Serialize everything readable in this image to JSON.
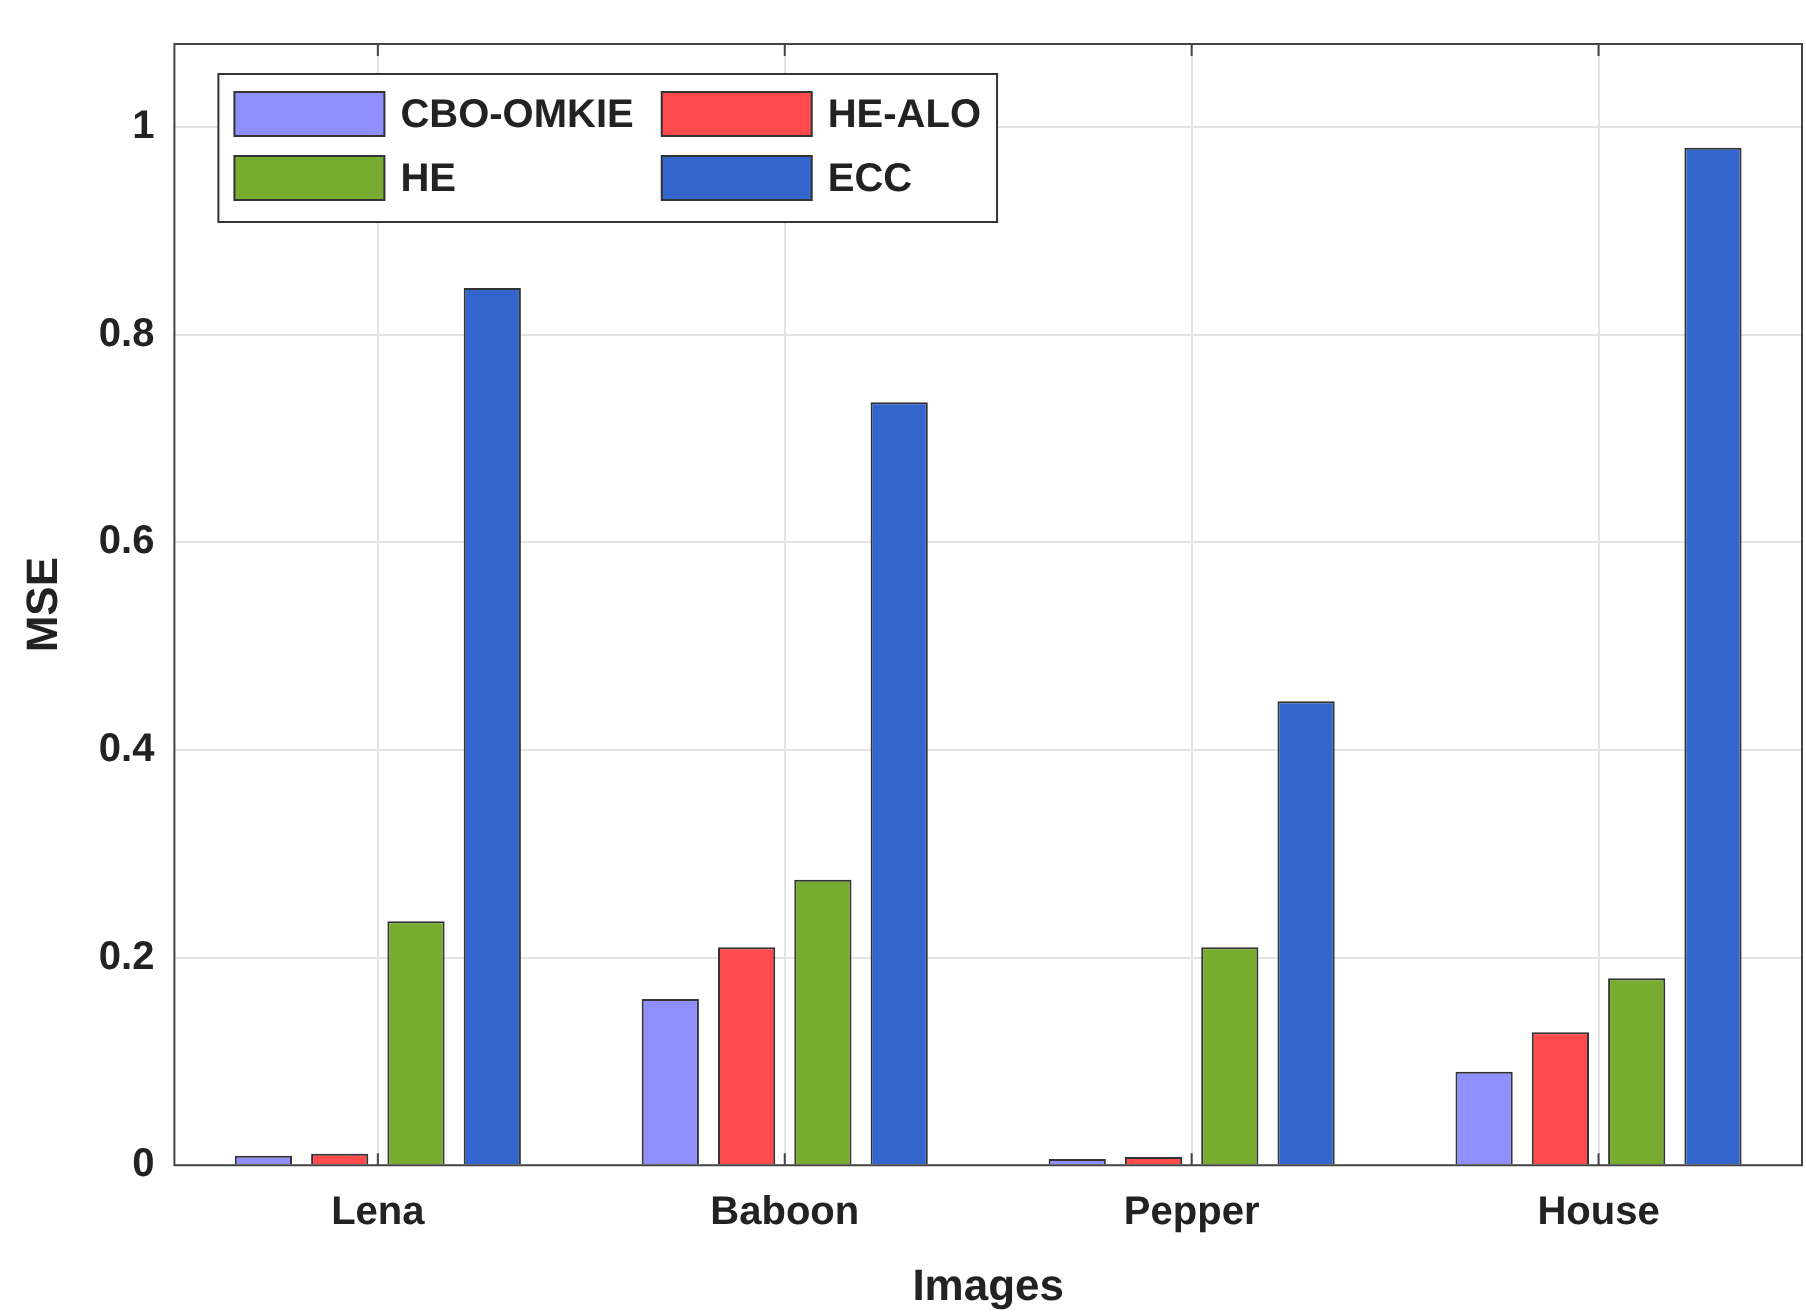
{
  "chart_data": {
    "type": "bar",
    "xlabel": "Images",
    "ylabel": "MSE",
    "categories": [
      "Lena",
      "Baboon",
      "Pepper",
      "House"
    ],
    "series": [
      {
        "name": "CBO-OMKIE",
        "color": "#8f8fff",
        "values": [
          0.009,
          0.16,
          0.006,
          0.09
        ]
      },
      {
        "name": "HE-ALO",
        "color": "#ff4b4b",
        "values": [
          0.011,
          0.21,
          0.008,
          0.128
        ]
      },
      {
        "name": "HE",
        "color": "#77ac30",
        "values": [
          0.235,
          0.275,
          0.21,
          0.18
        ]
      },
      {
        "name": "ECC",
        "color": "#3366cc",
        "values": [
          0.845,
          0.735,
          0.447,
          0.98
        ]
      }
    ],
    "ylim": [
      0,
      1.08
    ],
    "yticks": [
      0,
      0.2,
      0.4,
      0.6,
      0.8,
      1
    ],
    "grid": true,
    "legend": "top left"
  }
}
